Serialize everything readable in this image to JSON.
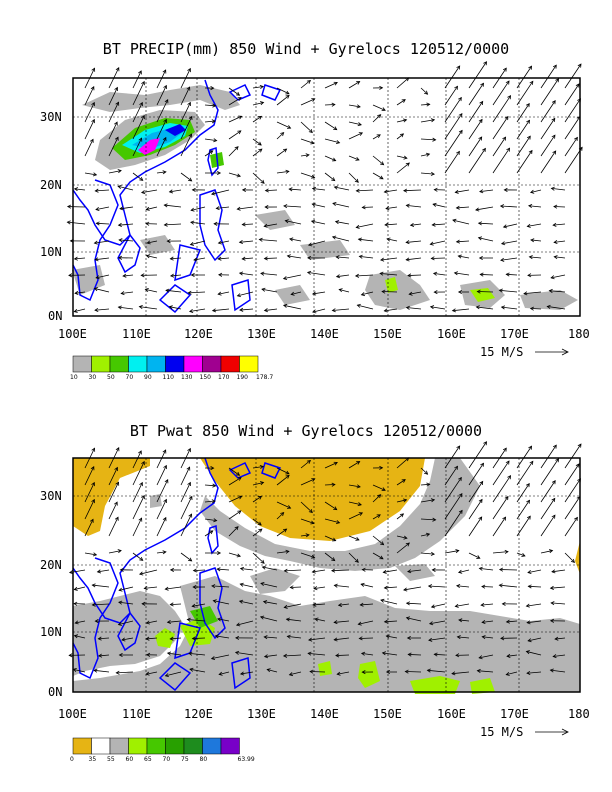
{
  "panels": [
    {
      "title": "BT PRECIP(mm) 850 Wind + Gyrelocs 120512/0000",
      "x_ticks": [
        "100E",
        "110E",
        "120E",
        "130E",
        "140E",
        "150E",
        "160E",
        "170E",
        "180"
      ],
      "y_ticks": [
        "0N",
        "10N",
        "20N",
        "30N"
      ],
      "scale_label": "15 M/S",
      "legend_colors": [
        "#b4b4b4",
        "#a0f000",
        "#46c800",
        "#00f0f0",
        "#00b4f0",
        "#0000f0",
        "#ff00ff",
        "#a00090",
        "#f00000",
        "#ffff00"
      ],
      "legend_labels": [
        "10",
        "30",
        "50",
        "70",
        "90",
        "110",
        "130",
        "150",
        "170",
        "190",
        "178.7"
      ],
      "field_color": "#b4b4b4"
    },
    {
      "title": "BT Pwat 850 Wind + Gyrelocs 120512/0000",
      "x_ticks": [
        "100E",
        "110E",
        "120E",
        "130E",
        "140E",
        "150E",
        "160E",
        "170E",
        "180"
      ],
      "y_ticks": [
        "0N",
        "10N",
        "20N",
        "30N"
      ],
      "scale_label": "15 M/S",
      "legend_colors": [
        "#e6b414",
        "#ffffff",
        "#b4b4b4",
        "#a0f000",
        "#46c800",
        "#28a000",
        "#1e8c1e",
        "#1e78dc",
        "#7800c8"
      ],
      "legend_labels": [
        "0",
        "35",
        "55",
        "60",
        "65",
        "70",
        "75",
        "80",
        "63.99"
      ],
      "field_color": "#b4b4b4"
    }
  ],
  "colors": {
    "coastline": "#0000ff",
    "grid": "#000000"
  }
}
